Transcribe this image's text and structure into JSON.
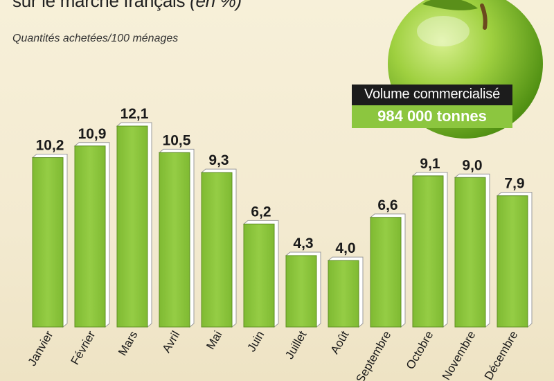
{
  "chart_data": {
    "type": "bar",
    "title": "sur le marché français",
    "title_unit": "(en %)",
    "subtitle": "Quantités achetées/100 ménages",
    "categories": [
      "Janvier",
      "Février",
      "Mars",
      "Avril",
      "Mai",
      "Juin",
      "Juillet",
      "Août",
      "Septembre",
      "Octobre",
      "Novembre",
      "Décembre"
    ],
    "values": [
      10.2,
      10.9,
      12.1,
      10.5,
      9.3,
      6.2,
      4.3,
      4.0,
      6.6,
      9.1,
      9.0,
      7.9
    ],
    "value_labels": [
      "10,2",
      "10,9",
      "12,1",
      "10,5",
      "9,3",
      "6,2",
      "4,3",
      "4,0",
      "6,6",
      "9,1",
      "9,0",
      "7,9"
    ],
    "ylim": [
      0,
      12.1
    ],
    "grid": false,
    "bar_color": "#8cc63f"
  },
  "callout": {
    "label": "Volume commercialisé",
    "value": "984 000 tonnes"
  },
  "colors": {
    "bar": "#8cc63f",
    "bar_highlight": "#b5de6a",
    "label_box": "#1c1c1c",
    "value_box": "#8cc63f"
  },
  "icons": {
    "apple": "green-apple-icon"
  }
}
